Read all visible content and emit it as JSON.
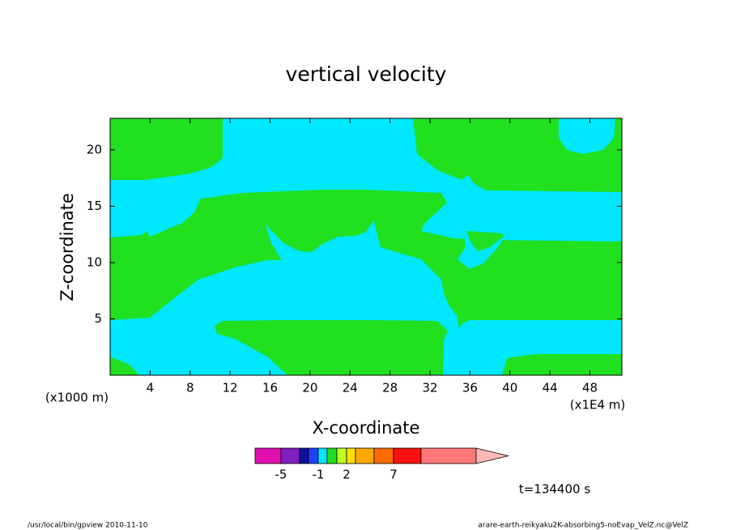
{
  "chart_data": {
    "type": "contour",
    "title": "vertical velocity",
    "xlabel": "X-coordinate",
    "ylabel": "Z-coordinate",
    "xunit": "(x1E4 m)",
    "yunit": "(x1000 m)",
    "xlim": [
      0,
      51.2
    ],
    "xticks": [
      4,
      8,
      12,
      16,
      20,
      24,
      28,
      32,
      36,
      40,
      44,
      48
    ],
    "ylim": [
      0,
      22.8
    ],
    "yticks": [
      5,
      10,
      15,
      20
    ],
    "colorbar": {
      "colors": [
        "#e010b0",
        "#8020c0",
        "#1010a0",
        "#2040ff",
        "#00e8ff",
        "#20e020",
        "#c0ff20",
        "#ffe000",
        "#ffa800",
        "#ff6a00",
        "#ff1010",
        "#ff7878"
      ],
      "extend_color": "#ffb8b8",
      "ticks": [
        -5,
        -1,
        2,
        7
      ]
    },
    "annotation": "t=134400 s",
    "footer_left": "/usr/local/bin/gpview  2010-11-10",
    "footer_right": "arare-earth-reikyaku2K-absorbing5-noEvap_VelZ.nc@VelZ"
  }
}
